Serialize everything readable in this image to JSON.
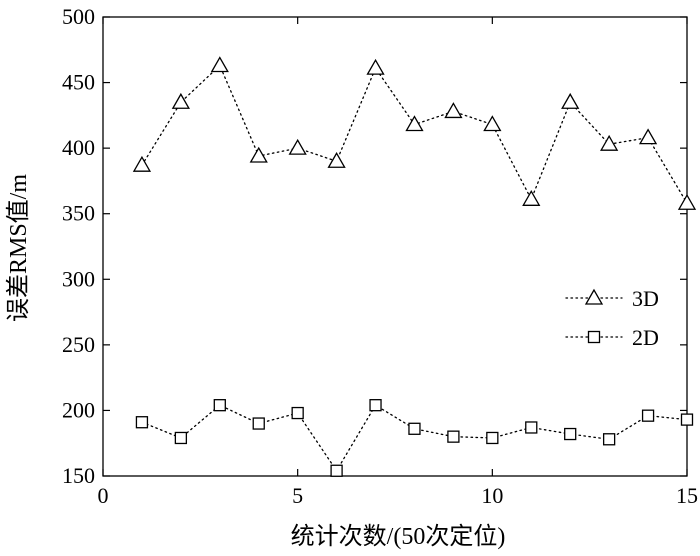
{
  "chart_data": {
    "type": "line",
    "title": "",
    "xlabel": "统计次数/(50次定位)",
    "ylabel": "误差RMS值/m",
    "xlim": [
      0,
      15
    ],
    "ylim": [
      150,
      500
    ],
    "x_ticks": [
      0,
      5,
      10,
      15
    ],
    "y_ticks": [
      150,
      200,
      250,
      300,
      350,
      400,
      450,
      500
    ],
    "grid": false,
    "legend_position": "right",
    "x": [
      1,
      2,
      3,
      4,
      5,
      6,
      7,
      8,
      9,
      10,
      11,
      12,
      13,
      14,
      15
    ],
    "series": [
      {
        "name": "3D",
        "marker": "triangle",
        "line_style": "dotted",
        "values": [
          387,
          435,
          463,
          394,
          400,
          390,
          461,
          418,
          428,
          418,
          361,
          435,
          403,
          408,
          358
        ]
      },
      {
        "name": "2D",
        "marker": "square",
        "line_style": "dotted",
        "values": [
          191,
          179,
          204,
          190,
          198,
          154,
          204,
          186,
          180,
          179,
          187,
          182,
          178,
          196,
          193
        ]
      }
    ]
  }
}
